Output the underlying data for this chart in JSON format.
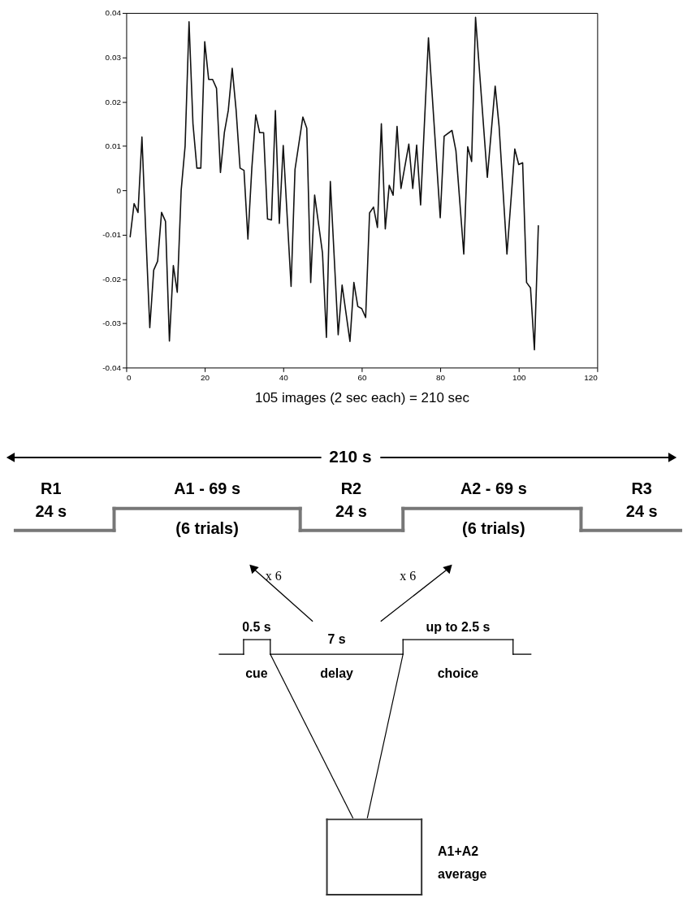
{
  "chart_data": {
    "type": "line",
    "xlabel": "105 images (2 sec each) = 210 sec",
    "x": [
      1,
      2,
      3,
      4,
      5,
      6,
      7,
      8,
      9,
      10,
      11,
      12,
      13,
      14,
      15,
      16,
      17,
      18,
      19,
      20,
      21,
      22,
      23,
      24,
      25,
      26,
      27,
      28,
      29,
      30,
      31,
      32,
      33,
      34,
      35,
      36,
      37,
      38,
      39,
      40,
      42,
      43,
      45,
      46,
      47,
      48,
      50,
      51,
      52,
      54,
      55,
      57,
      58,
      59,
      60,
      61,
      62,
      63,
      64,
      65,
      66,
      67,
      68,
      69,
      70,
      72,
      73,
      74,
      75,
      77,
      80,
      81,
      83,
      84,
      86,
      87,
      88,
      89,
      92,
      94,
      95,
      97,
      99,
      100,
      101,
      102,
      103,
      104,
      105
    ],
    "series": [
      {
        "color": "#111111",
        "values": [
          -0.0105,
          -0.003,
          -0.005,
          0.012,
          -0.01,
          -0.031,
          -0.018,
          -0.016,
          -0.005,
          -0.007,
          -0.034,
          -0.017,
          -0.023,
          0.0,
          0.01,
          0.038,
          0.015,
          0.005,
          0.005,
          0.0335,
          0.025,
          0.025,
          0.023,
          0.004,
          0.013,
          0.018,
          0.0275,
          0.018,
          0.005,
          0.0045,
          -0.011,
          0.005,
          0.017,
          0.013,
          0.013,
          -0.0065,
          -0.0067,
          0.018,
          -0.0075,
          0.0101,
          -0.0217,
          0.0047,
          0.0165,
          0.014,
          -0.0208,
          -0.0011,
          -0.0141,
          -0.0332,
          0.002,
          -0.0326,
          -0.0214,
          -0.0341,
          -0.0208,
          -0.0262,
          -0.0267,
          -0.0287,
          -0.0051,
          -0.0038,
          -0.0084,
          0.015,
          -0.0087,
          0.0011,
          -0.0011,
          0.0144,
          0.0004,
          0.0104,
          0.0004,
          0.0102,
          -0.0033,
          0.0344,
          -0.0062,
          0.0122,
          0.0135,
          0.0089,
          -0.0144,
          0.0098,
          0.0065,
          0.039,
          0.0029,
          0.0235,
          0.0144,
          -0.0144,
          0.0093,
          0.0058,
          0.0062,
          -0.0208,
          -0.022,
          -0.036,
          -0.008
        ]
      }
    ],
    "xlim": [
      0,
      120
    ],
    "xticks": [
      0,
      20,
      40,
      60,
      80,
      100,
      120
    ],
    "ylim": [
      -0.04,
      0.04
    ],
    "yticks": [
      -0.04,
      -0.03,
      -0.02,
      -0.01,
      0,
      0.01,
      0.02,
      0.03,
      0.04
    ],
    "grid": false,
    "marker": "none",
    "line_style": "solid",
    "annotations": [
      "210 s",
      "R1",
      "24 s",
      "A1 - 69 s",
      "(6 trials)",
      "R2",
      "24 s",
      "A2 - 69 s",
      "(6 trials)",
      "R3",
      "24 s",
      "x 6",
      "x 6",
      "0.5 s",
      "7 s",
      "up to 2.5 s",
      "cue",
      "delay",
      "choice",
      "A1+A2",
      "average"
    ]
  }
}
